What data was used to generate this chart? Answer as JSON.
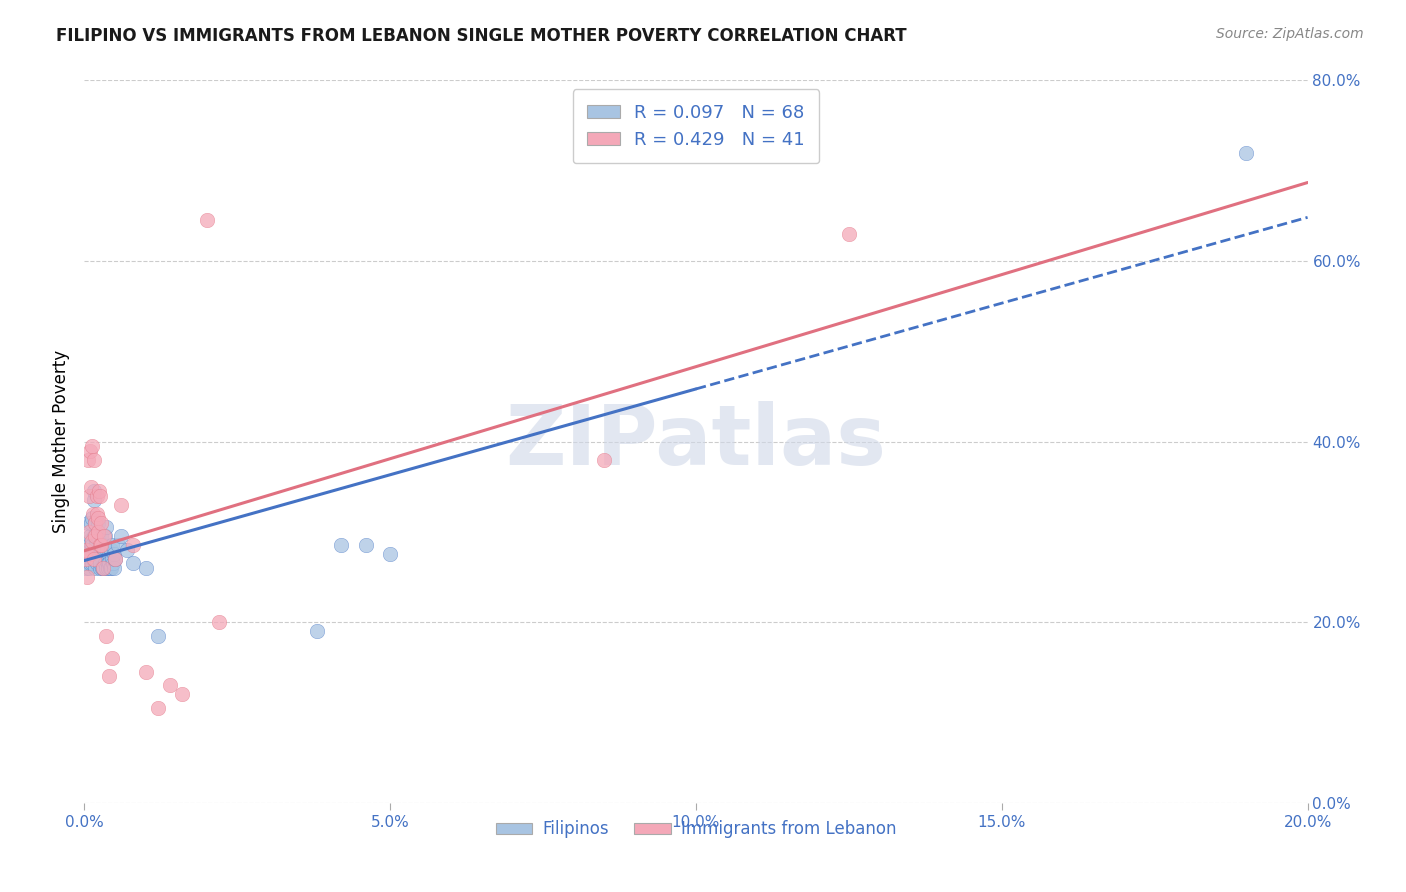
{
  "title": "FILIPINO VS IMMIGRANTS FROM LEBANON SINGLE MOTHER POVERTY CORRELATION CHART",
  "source_text": "Source: ZipAtlas.com",
  "ylabel": "Single Mother Poverty",
  "xlim": [
    0.0,
    0.2
  ],
  "ylim": [
    0.0,
    0.8
  ],
  "xticks": [
    0.0,
    0.05,
    0.1,
    0.15,
    0.2
  ],
  "yticks": [
    0.0,
    0.2,
    0.4,
    0.6,
    0.8
  ],
  "xtick_labels": [
    "0.0%",
    "5.0%",
    "10.0%",
    "15.0%",
    "20.0%"
  ],
  "ytick_labels": [
    "0.0%",
    "20.0%",
    "40.0%",
    "60.0%",
    "80.0%"
  ],
  "legend_entry1": "R = 0.097   N = 68",
  "legend_entry2": "R = 0.429   N = 41",
  "watermark": "ZIPatlas",
  "filipino_color": "#a8c4e2",
  "lebanon_color": "#f4a8b8",
  "trend_blue": "#4472c4",
  "trend_pink": "#e07080",
  "filipinos_label": "Filipinos",
  "lebanon_label": "Immigrants from Lebanon",
  "filipino_x": [
    0.0002,
    0.0003,
    0.0004,
    0.0005,
    0.0006,
    0.0006,
    0.0007,
    0.0007,
    0.0008,
    0.0009,
    0.001,
    0.001,
    0.0011,
    0.0012,
    0.0012,
    0.0013,
    0.0013,
    0.0014,
    0.0015,
    0.0015,
    0.0016,
    0.0017,
    0.0018,
    0.0018,
    0.0019,
    0.002,
    0.0021,
    0.0022,
    0.0023,
    0.0024,
    0.0025,
    0.0025,
    0.0026,
    0.0027,
    0.0028,
    0.0029,
    0.003,
    0.0031,
    0.0032,
    0.0033,
    0.0034,
    0.0035,
    0.0036,
    0.0037,
    0.0038,
    0.0039,
    0.004,
    0.0041,
    0.0042,
    0.0043,
    0.0044,
    0.0045,
    0.0046,
    0.0047,
    0.0048,
    0.0049,
    0.005,
    0.0055,
    0.006,
    0.007,
    0.008,
    0.01,
    0.012,
    0.038,
    0.042,
    0.046,
    0.05,
    0.19
  ],
  "filipino_y": [
    0.27,
    0.26,
    0.285,
    0.265,
    0.31,
    0.28,
    0.26,
    0.28,
    0.29,
    0.275,
    0.295,
    0.265,
    0.31,
    0.315,
    0.275,
    0.285,
    0.265,
    0.27,
    0.335,
    0.295,
    0.345,
    0.31,
    0.275,
    0.26,
    0.285,
    0.265,
    0.295,
    0.31,
    0.295,
    0.275,
    0.285,
    0.26,
    0.265,
    0.28,
    0.295,
    0.26,
    0.285,
    0.26,
    0.28,
    0.265,
    0.295,
    0.26,
    0.305,
    0.28,
    0.265,
    0.26,
    0.275,
    0.265,
    0.26,
    0.28,
    0.26,
    0.27,
    0.285,
    0.265,
    0.26,
    0.275,
    0.27,
    0.285,
    0.295,
    0.28,
    0.265,
    0.26,
    0.185,
    0.19,
    0.285,
    0.285,
    0.275,
    0.72
  ],
  "lebanon_x": [
    0.0002,
    0.0003,
    0.0005,
    0.0006,
    0.0007,
    0.0008,
    0.0009,
    0.001,
    0.0011,
    0.0012,
    0.0013,
    0.0014,
    0.0015,
    0.0016,
    0.0017,
    0.0018,
    0.002,
    0.0021,
    0.0022,
    0.0023,
    0.0024,
    0.0025,
    0.0026,
    0.0027,
    0.0028,
    0.003,
    0.0032,
    0.0035,
    0.004,
    0.0045,
    0.005,
    0.006,
    0.008,
    0.01,
    0.012,
    0.014,
    0.016,
    0.02,
    0.022,
    0.085,
    0.125
  ],
  "lebanon_y": [
    0.27,
    0.28,
    0.25,
    0.38,
    0.34,
    0.3,
    0.39,
    0.275,
    0.35,
    0.29,
    0.395,
    0.32,
    0.27,
    0.38,
    0.31,
    0.295,
    0.32,
    0.34,
    0.315,
    0.3,
    0.345,
    0.285,
    0.34,
    0.285,
    0.31,
    0.26,
    0.295,
    0.185,
    0.14,
    0.16,
    0.27,
    0.33,
    0.285,
    0.145,
    0.105,
    0.13,
    0.12,
    0.645,
    0.2,
    0.38,
    0.63
  ],
  "blue_line_x_solid_end": 0.1,
  "blue_line_x_end": 0.2,
  "pink_line_x_end": 0.2
}
